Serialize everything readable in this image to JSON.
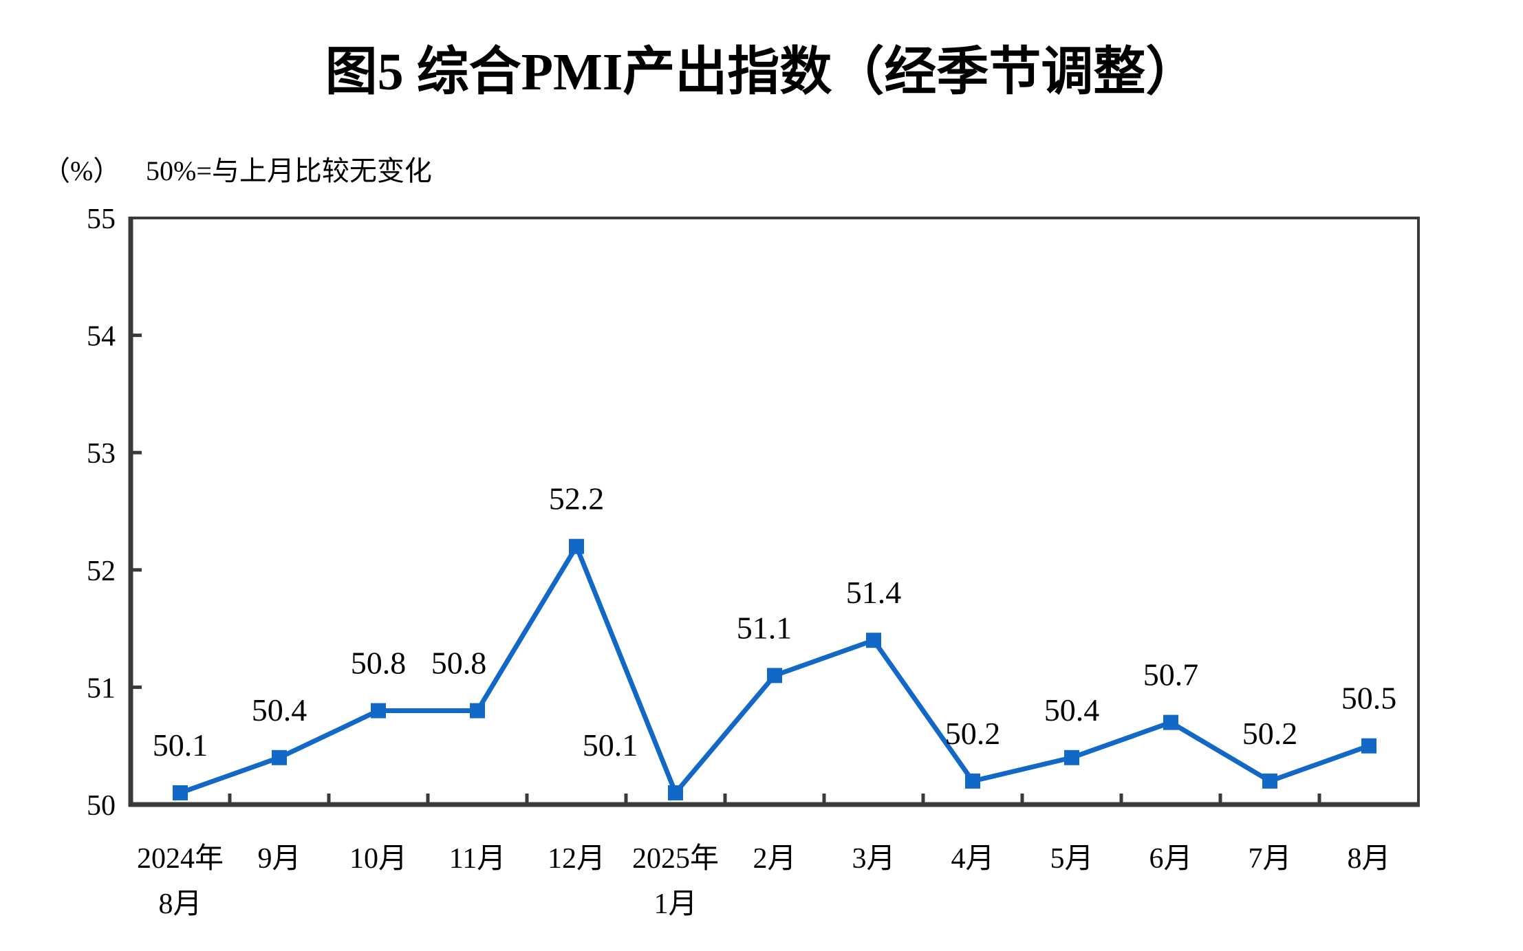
{
  "page": {
    "background_color": "#ffffff",
    "text_color": "#000000"
  },
  "chart_data": {
    "type": "line",
    "title": "图5 综合PMI产出指数（经季节调整）",
    "unit_label": "（%）",
    "note": "50%=与上月比较无变化",
    "categories": [
      [
        "2024年",
        "8月"
      ],
      [
        "9月"
      ],
      [
        "10月"
      ],
      [
        "11月"
      ],
      [
        "12月"
      ],
      [
        "2025年",
        "1月"
      ],
      [
        "2月"
      ],
      [
        "3月"
      ],
      [
        "4月"
      ],
      [
        "5月"
      ],
      [
        "6月"
      ],
      [
        "7月"
      ],
      [
        "8月"
      ]
    ],
    "values": [
      50.1,
      50.4,
      50.8,
      50.8,
      52.2,
      50.1,
      51.1,
      51.4,
      50.2,
      50.4,
      50.7,
      50.2,
      50.5
    ],
    "ylim": [
      50,
      55
    ],
    "yticks": [
      50,
      51,
      52,
      53,
      54,
      55
    ],
    "xlabel": "",
    "ylabel": "%",
    "grid": false,
    "legend": "none",
    "data_labels": true,
    "marker": "square",
    "line_color": "#1268c6",
    "axis_color": "#3a3a3a"
  }
}
